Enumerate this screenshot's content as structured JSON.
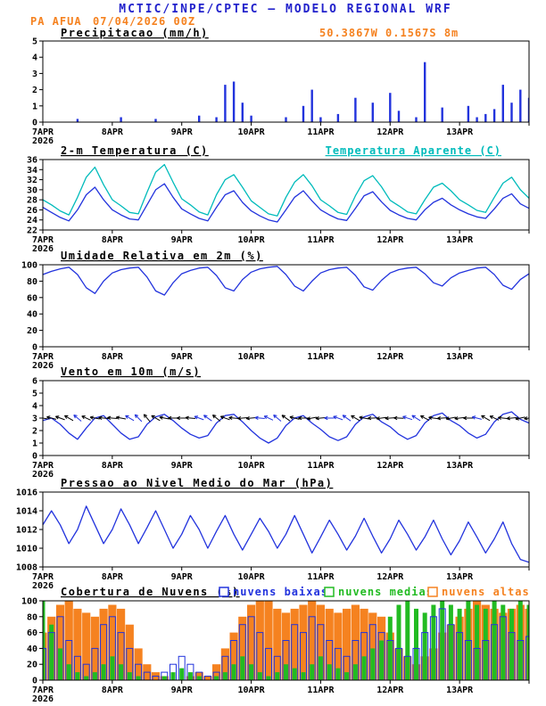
{
  "header": {
    "title": "MCTIC/INPE/CPTEC — MODELO REGIONAL WRF",
    "station": "PA AFUA",
    "run": "07/04/2026 00Z",
    "location": "50.3867W 0.1567S 8m"
  },
  "x_axis": {
    "tick_labels": [
      "7APR",
      "8APR",
      "9APR",
      "10APR",
      "11APR",
      "12APR",
      "13APR"
    ],
    "year_label": "2026",
    "hours_span": 168,
    "step_hours": 3
  },
  "colors": {
    "title_blue": "#2222cc",
    "orange": "#f58220",
    "cyan": "#00bbbb",
    "green": "#22bb22",
    "series_blue": "#2233dd",
    "axis_black": "#000000"
  },
  "chart_data": [
    {
      "type": "bar",
      "title": "Precipitacao (mm/h)",
      "ylim": [
        0,
        5
      ],
      "yticks": [
        0,
        1,
        2,
        3,
        4,
        5
      ],
      "series": [
        {
          "name": "precipitacao",
          "color": "#2233dd",
          "values": [
            0,
            0,
            0,
            0,
            0.2,
            0,
            0,
            0,
            0,
            0.3,
            0,
            0,
            0,
            0.2,
            0,
            0,
            0,
            0,
            0.4,
            0,
            0.3,
            2.3,
            2.5,
            1.2,
            0.4,
            0,
            0,
            0,
            0.3,
            0,
            1.0,
            2.0,
            0.3,
            0,
            0.5,
            0,
            1.5,
            0,
            1.2,
            0,
            1.8,
            0.7,
            0,
            0.3,
            3.7,
            0,
            0.9,
            0,
            0,
            1.0,
            0.3,
            0.5,
            0.8,
            2.3,
            1.2,
            2.0,
            1.5
          ]
        }
      ]
    },
    {
      "type": "line",
      "title": "2-m Temperatura (C)",
      "right_title": "Temperatura Aparente (C)",
      "ylim": [
        22,
        36
      ],
      "yticks": [
        22,
        24,
        26,
        28,
        30,
        32,
        34,
        36
      ],
      "series": [
        {
          "name": "temperatura-2m",
          "color": "#2233dd",
          "values": [
            26.5,
            25.5,
            24.5,
            23.8,
            26.0,
            29.0,
            30.5,
            28.0,
            26.0,
            25.0,
            24.2,
            24.0,
            27.0,
            30.0,
            31.2,
            28.5,
            26.2,
            25.2,
            24.3,
            23.8,
            26.5,
            29.0,
            29.8,
            27.5,
            25.8,
            24.8,
            24.0,
            23.6,
            26.0,
            28.5,
            29.8,
            27.8,
            26.0,
            25.0,
            24.2,
            23.9,
            26.3,
            28.8,
            29.6,
            27.6,
            25.9,
            25.0,
            24.3,
            24.0,
            26.0,
            27.5,
            28.3,
            27.0,
            26.0,
            25.2,
            24.6,
            24.3,
            26.2,
            28.3,
            29.2,
            27.2,
            26.3
          ]
        },
        {
          "name": "temperatura-aparente",
          "color": "#00bbbb",
          "values": [
            28.0,
            27.0,
            25.8,
            25.0,
            28.5,
            32.5,
            34.5,
            31.0,
            28.0,
            26.8,
            25.5,
            25.2,
            29.5,
            33.5,
            35.0,
            31.5,
            28.2,
            27.0,
            25.6,
            25.0,
            29.0,
            32.0,
            33.0,
            30.5,
            27.8,
            26.5,
            25.2,
            24.8,
            28.5,
            31.5,
            33.0,
            30.8,
            28.0,
            26.8,
            25.5,
            25.1,
            28.8,
            31.8,
            32.8,
            30.6,
            27.9,
            26.8,
            25.6,
            25.2,
            28.0,
            30.5,
            31.3,
            29.8,
            28.0,
            27.0,
            25.9,
            25.5,
            28.5,
            31.3,
            32.5,
            30.0,
            28.3
          ]
        }
      ]
    },
    {
      "type": "line",
      "title": "Umidade Relativa em 2m (%)",
      "ylim": [
        0,
        100
      ],
      "yticks": [
        0,
        20,
        40,
        60,
        80,
        100
      ],
      "series": [
        {
          "name": "umidade-relativa",
          "color": "#2233dd",
          "values": [
            88,
            92,
            95,
            97,
            88,
            72,
            65,
            80,
            90,
            94,
            96,
            97,
            85,
            68,
            63,
            78,
            89,
            93,
            96,
            97,
            87,
            72,
            68,
            82,
            91,
            95,
            97,
            98,
            88,
            74,
            68,
            80,
            90,
            94,
            96,
            97,
            87,
            73,
            69,
            81,
            90,
            94,
            96,
            97,
            89,
            78,
            74,
            84,
            90,
            93,
            96,
            97,
            88,
            75,
            70,
            82,
            89
          ]
        }
      ]
    },
    {
      "type": "line-barbs",
      "title": "Vento em 10m (m/s)",
      "ylim": [
        0,
        6
      ],
      "yticks": [
        0,
        1,
        2,
        3,
        4,
        5,
        6
      ],
      "series": [
        {
          "name": "vento-10m",
          "color": "#2233dd",
          "values": [
            2.8,
            3.0,
            2.5,
            1.8,
            1.3,
            2.2,
            3.0,
            3.2,
            2.5,
            1.8,
            1.3,
            1.5,
            2.5,
            3.1,
            3.3,
            2.8,
            2.2,
            1.7,
            1.4,
            1.6,
            2.6,
            3.2,
            3.3,
            2.7,
            2.0,
            1.4,
            1.0,
            1.4,
            2.4,
            3.0,
            3.2,
            2.6,
            2.1,
            1.5,
            1.2,
            1.5,
            2.5,
            3.1,
            3.3,
            2.7,
            2.3,
            1.7,
            1.3,
            1.6,
            2.6,
            3.2,
            3.4,
            2.8,
            2.4,
            1.8,
            1.4,
            1.7,
            2.7,
            3.3,
            3.5,
            2.9,
            2.6
          ]
        }
      ],
      "barbs": {
        "y_value": 3,
        "color": "#000000",
        "low_color": "#2233dd",
        "low_speed_threshold": 1.6,
        "directions_deg": [
          100,
          105,
          110,
          120,
          130,
          115,
          100,
          95,
          95,
          100,
          120,
          135,
          140,
          120,
          100,
          90,
          90,
          95,
          110,
          125,
          130,
          110,
          95,
          85,
          85,
          95,
          115,
          130,
          125,
          105,
          90,
          80,
          85,
          90,
          110,
          125,
          120,
          100,
          88,
          82,
          86,
          92,
          108,
          122,
          118,
          98,
          86,
          80,
          84,
          90,
          105,
          120,
          115,
          96,
          85,
          78,
          82
        ]
      }
    },
    {
      "type": "line",
      "title": "Pressao ao Nivel Medio do Mar (hPa)",
      "ylim": [
        1008,
        1016
      ],
      "yticks": [
        1008,
        1010,
        1012,
        1014,
        1016
      ],
      "series": [
        {
          "name": "pressao-nmm",
          "color": "#2233dd",
          "values": [
            1012.5,
            1014.0,
            1012.5,
            1010.5,
            1012.0,
            1014.5,
            1012.5,
            1010.5,
            1012.0,
            1014.2,
            1012.5,
            1010.5,
            1012.2,
            1014.0,
            1012.0,
            1010.0,
            1011.5,
            1013.5,
            1012.0,
            1010.0,
            1011.8,
            1013.5,
            1011.5,
            1009.8,
            1011.5,
            1013.2,
            1011.8,
            1010.0,
            1011.5,
            1013.5,
            1011.5,
            1009.5,
            1011.2,
            1013.0,
            1011.5,
            1009.8,
            1011.3,
            1013.2,
            1011.3,
            1009.5,
            1011.0,
            1013.0,
            1011.5,
            1009.8,
            1011.2,
            1013.0,
            1011.0,
            1009.3,
            1010.8,
            1012.8,
            1011.2,
            1009.5,
            1011.0,
            1012.8,
            1010.5,
            1008.8,
            1008.5
          ]
        }
      ]
    },
    {
      "type": "cloud-bars",
      "title": "Cobertura de Nuvens (%)",
      "ylim": [
        0,
        100
      ],
      "yticks": [
        0,
        20,
        40,
        60,
        80,
        100
      ],
      "legend": [
        {
          "label": "nuvens baixas",
          "color": "#2233dd"
        },
        {
          "label": "nuvens medias",
          "color": "#22bb22"
        },
        {
          "label": "nuvens altas",
          "color": "#f58220"
        }
      ],
      "series": [
        {
          "name": "nuvens-altas",
          "color": "#f58220",
          "style": "fill",
          "values": [
            60,
            80,
            95,
            100,
            90,
            85,
            80,
            90,
            95,
            90,
            70,
            40,
            20,
            10,
            5,
            0,
            0,
            5,
            10,
            5,
            20,
            40,
            60,
            80,
            95,
            100,
            100,
            90,
            85,
            90,
            95,
            100,
            95,
            90,
            85,
            90,
            95,
            90,
            85,
            80,
            60,
            40,
            30,
            20,
            30,
            40,
            60,
            70,
            80,
            90,
            100,
            95,
            90,
            85,
            90,
            95,
            90
          ]
        },
        {
          "name": "nuvens-medias",
          "color": "#22bb22",
          "style": "fill",
          "values": [
            100,
            70,
            40,
            20,
            10,
            5,
            10,
            20,
            30,
            20,
            10,
            5,
            0,
            0,
            5,
            10,
            15,
            10,
            5,
            0,
            5,
            10,
            20,
            30,
            20,
            10,
            5,
            10,
            20,
            15,
            10,
            20,
            30,
            20,
            15,
            10,
            20,
            30,
            40,
            50,
            80,
            95,
            100,
            90,
            85,
            95,
            100,
            95,
            90,
            100,
            95,
            90,
            100,
            95,
            90,
            100,
            95
          ]
        },
        {
          "name": "nuvens-baixas",
          "color": "#2233dd",
          "style": "outline",
          "values": [
            40,
            60,
            80,
            50,
            30,
            20,
            40,
            70,
            80,
            60,
            40,
            20,
            10,
            5,
            10,
            20,
            30,
            20,
            10,
            5,
            10,
            30,
            50,
            70,
            80,
            60,
            40,
            30,
            50,
            70,
            60,
            80,
            70,
            50,
            40,
            30,
            50,
            60,
            70,
            60,
            50,
            40,
            30,
            40,
            60,
            80,
            90,
            70,
            60,
            50,
            40,
            50,
            70,
            80,
            60,
            50,
            55
          ]
        }
      ]
    }
  ]
}
